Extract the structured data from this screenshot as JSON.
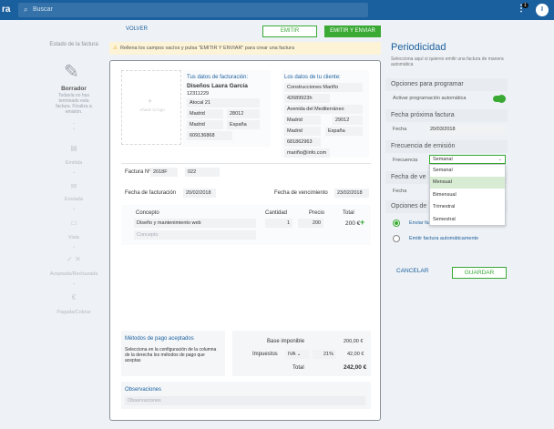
{
  "topbar": {
    "brand": "ra",
    "search_placeholder": "Buscar",
    "notif_count": "1",
    "avatar_initial": "I"
  },
  "left_panel": {
    "title": "Estado de la factura",
    "state": "Borrador",
    "state_desc": "Todavía no has terminado esta factura. Finaliza a emisión.",
    "steps": [
      "Emitida",
      "Enviada",
      "Vista",
      "Aceptada/Rechazada",
      "Pagada/Cobrar"
    ]
  },
  "toolbar": {
    "volver": "VOLVER",
    "emitir": "EMITIR",
    "emitir_enviar": "EMITIR Y ENVIAR"
  },
  "warning": "Rellena los campos vacíos y pulsa \"EMITIR Y ENVIAR\" para crear una factura",
  "invoice": {
    "logo_placeholder": "Añade tu logo",
    "emitter": {
      "heading": "Tus datos de facturación:",
      "name": "Diseños Laura García",
      "nif": "12311229",
      "address": "Atocal 21",
      "city": "Madrid",
      "zip": "28012",
      "province": "Madrid",
      "country": "España",
      "phone": "609136868"
    },
    "client": {
      "heading": "Los datos de tu cliente:",
      "name": "Construcciones Mariño",
      "nif": "42689923h",
      "address": "Avenida del Mediterráneo",
      "city": "Madrid",
      "zip": "29012",
      "province": "Madrid",
      "country": "España",
      "phone": "681862963",
      "email": "mariño@info.com"
    },
    "number_label": "Factura Nº",
    "series": "2018F",
    "number": "022",
    "date_label": "Fecha de facturación",
    "date": "20/02/2018",
    "due_label": "Fecha de vencimiento",
    "due_date": "23/02/2018",
    "table": {
      "headers": [
        "Concepto",
        "Cantidad",
        "Precio",
        "Total"
      ],
      "rows": [
        {
          "concept": "Diseño y mantenimiento web",
          "qty": "1",
          "price": "200",
          "total": "200 €"
        }
      ],
      "new_row_placeholder": "Concepto"
    },
    "payment": {
      "heading": "Métodos de pago aceptados",
      "desc": "Selecciona en la configuración de la columna de la derecha los métodos de pago que aceptas"
    },
    "totals": {
      "base_label": "Base imponible",
      "base": "200,00 €",
      "tax_label": "Impuestos",
      "tax_type": "IVA",
      "tax_rate": "21%",
      "tax": "42,00 €",
      "total_label": "Total",
      "total": "242,00 €"
    },
    "obs": {
      "heading": "Observaciones",
      "placeholder": "Observaciones"
    }
  },
  "right_panel": {
    "title": "Periodicidad",
    "desc": "Selecciona aquí si quieres emitir una factura de manera automática",
    "options_heading": "Opciones para programar",
    "activate_label": "Activar programación automática",
    "next_heading": "Fecha próxima factura",
    "next_label": "Fecha",
    "next_date": "20/03/2018",
    "freq_heading": "Frecuencia de emisión",
    "freq_label": "Frecuencia",
    "freq_value": "Semanal",
    "freq_options": [
      "Semanal",
      "Mensual",
      "Bimensual",
      "Trimestral",
      "Semestral"
    ],
    "end_heading": "Fecha de ve",
    "end_label": "Fecha",
    "send_heading": "Opciones de",
    "radio1": "Enviar fa",
    "radio2": "Emitir factura automáticamente",
    "cancel": "CANCELAR",
    "save": "GUARDAR"
  }
}
